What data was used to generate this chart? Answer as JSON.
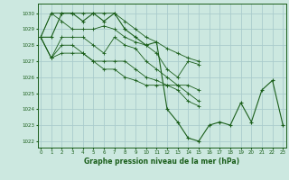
{
  "background_color": "#cce8e0",
  "grid_color": "#aacccc",
  "line_color": "#1a5e1a",
  "marker_color": "#1a5e1a",
  "ylabel_values": [
    1022,
    1023,
    1024,
    1025,
    1026,
    1027,
    1028,
    1029,
    1030
  ],
  "xlabel_values": [
    0,
    1,
    2,
    3,
    4,
    5,
    6,
    7,
    8,
    9,
    10,
    11,
    12,
    13,
    14,
    15,
    16,
    17,
    18,
    19,
    20,
    21,
    22,
    23
  ],
  "xlim": [
    -0.3,
    23.3
  ],
  "ylim": [
    1021.6,
    1030.6
  ],
  "xlabel": "Graphe pression niveau de la mer (hPa)",
  "series": [
    [
      1028.5,
      1030.0,
      1030.0,
      1030.0,
      1030.0,
      1030.0,
      1030.0,
      1030.0,
      1029.5,
      1029.0,
      1028.5,
      1028.2,
      1027.8,
      1027.5,
      1027.2,
      1027.0,
      null,
      null,
      null,
      null,
      null,
      null,
      null,
      null
    ],
    [
      1028.5,
      1030.0,
      1029.5,
      1029.0,
      1029.0,
      1029.0,
      1029.2,
      1029.0,
      1028.5,
      1028.2,
      1028.0,
      1027.5,
      1026.5,
      1026.0,
      1027.0,
      1026.8,
      null,
      null,
      null,
      null,
      null,
      null,
      null,
      null
    ],
    [
      1028.5,
      1027.2,
      1028.5,
      1028.5,
      1028.5,
      1028.0,
      1027.5,
      1028.5,
      1028.0,
      1027.8,
      1027.0,
      1026.5,
      1026.0,
      1025.5,
      1025.5,
      1025.2,
      null,
      null,
      null,
      null,
      null,
      null,
      null,
      null
    ],
    [
      1028.5,
      1027.2,
      1028.0,
      1028.0,
      1027.5,
      1027.0,
      1027.0,
      1027.0,
      1027.0,
      1026.5,
      1026.0,
      1025.8,
      1025.5,
      1025.5,
      1025.0,
      1024.5,
      null,
      null,
      null,
      null,
      null,
      null,
      null,
      null
    ],
    [
      1028.5,
      1027.2,
      1027.5,
      1027.5,
      1027.5,
      1027.0,
      1026.5,
      1026.5,
      1026.0,
      1025.8,
      1025.5,
      1025.5,
      1025.5,
      1025.2,
      1024.5,
      1024.2,
      null,
      null,
      null,
      null,
      null,
      null,
      null,
      null
    ],
    [
      1028.5,
      1028.5,
      1030.0,
      1030.0,
      1029.5,
      1030.0,
      1029.5,
      1030.0,
      1029.0,
      1028.5,
      1028.0,
      1028.2,
      1024.0,
      1023.2,
      1022.2,
      1022.0,
      1023.0,
      1023.2,
      1023.0,
      1024.4,
      1023.2,
      1025.2,
      1025.8,
      1023.0
    ]
  ],
  "main_series_idx": 5
}
